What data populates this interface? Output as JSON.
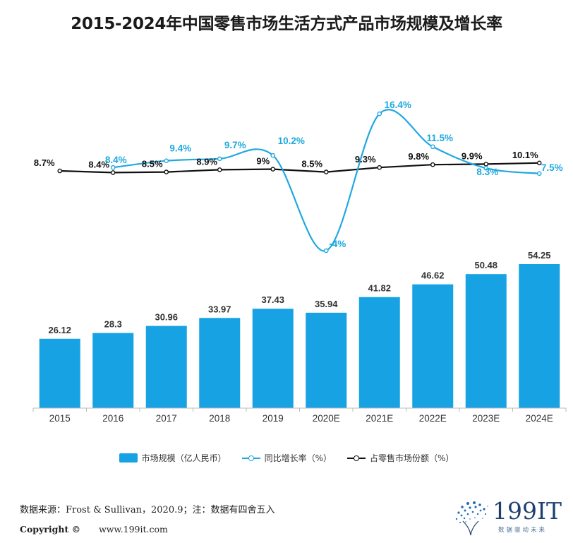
{
  "title": "2015-2024年中国零售市场生活方式产品市场规模及增长率",
  "colors": {
    "bar": "#17a2e4",
    "growth_line": "#1fa8e0",
    "share_line": "#111111"
  },
  "legend": {
    "bar": "市场规模（亿人民币）",
    "growth": "同比增长率（%）",
    "share": "占零售市场份额（%）"
  },
  "source_text": "数据来源：Frost & Sullivan，2020.9；注：数据有四舍五入",
  "copyright": {
    "label": "Copyright ©",
    "url": "www.199it.com"
  },
  "logo": {
    "text": "199IT",
    "subtext": "数据驱动未来",
    "icon": "dandelion-dots-icon"
  },
  "chart_data": {
    "type": "bar",
    "categories": [
      "2015",
      "2016",
      "2017",
      "2018",
      "2019",
      "2020E",
      "2021E",
      "2022E",
      "2023E",
      "2024E"
    ],
    "series": [
      {
        "name": "市场规模（亿人民币）",
        "type": "bar",
        "values": [
          26.12,
          28.3,
          30.96,
          33.97,
          37.43,
          35.94,
          41.82,
          46.62,
          50.48,
          54.25
        ],
        "labels": [
          "26.12",
          "28.3",
          "30.96",
          "33.97",
          "37.43",
          "35.94",
          "41.82",
          "46.62",
          "50.48",
          "54.25"
        ]
      },
      {
        "name": "同比增长率（%）",
        "type": "line",
        "smooth": true,
        "values": [
          null,
          8.4,
          9.4,
          9.7,
          10.2,
          -4,
          16.4,
          11.5,
          8.3,
          7.5
        ],
        "labels": [
          "",
          "8.4%",
          "9.4%",
          "9.7%",
          "10.2%",
          "-4%",
          "16.4%",
          "11.5%",
          "8.3%",
          "7.5%"
        ]
      },
      {
        "name": "占零售市场份额（%）",
        "type": "line",
        "values": [
          8.7,
          8.4,
          8.5,
          8.9,
          9,
          8.5,
          9.3,
          9.8,
          9.9,
          10.1
        ],
        "labels": [
          "8.7%",
          "8.4%",
          "8.5%",
          "8.9%",
          "9%",
          "8.5%",
          "9.3%",
          "9.8%",
          "9.9%",
          "10.1%"
        ]
      }
    ]
  }
}
